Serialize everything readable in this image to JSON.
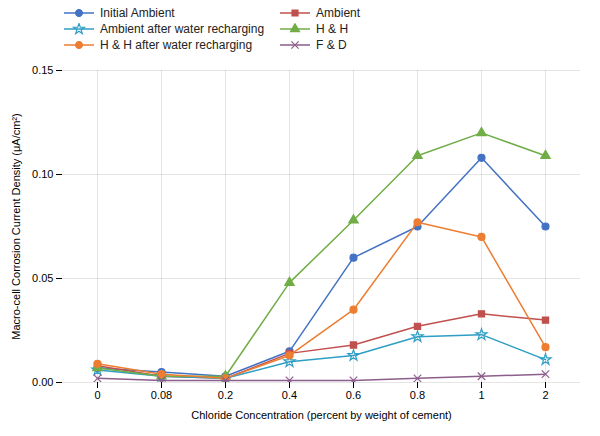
{
  "chart_data": {
    "type": "line",
    "categories": [
      "0",
      "0.08",
      "0.2",
      "0.4",
      "0.6",
      "0.8",
      "1",
      "2"
    ],
    "series": [
      {
        "name": "Initial Ambient",
        "color": "#4472C4",
        "marker": "circle",
        "values": [
          0.007,
          0.005,
          0.003,
          0.015,
          0.06,
          0.075,
          0.108,
          0.075
        ]
      },
      {
        "name": "Ambient",
        "color": "#C0504D",
        "marker": "square",
        "values": [
          0.008,
          0.003,
          0.002,
          0.014,
          0.018,
          0.027,
          0.033,
          0.03
        ]
      },
      {
        "name": "Ambient after water recharging",
        "color": "#2E9EC4",
        "marker": "star",
        "values": [
          0.006,
          0.003,
          0.002,
          0.01,
          0.013,
          0.022,
          0.023,
          0.011
        ]
      },
      {
        "name": "H & H",
        "color": "#70AD47",
        "marker": "triangle",
        "values": [
          0.007,
          0.003,
          0.003,
          0.048,
          0.078,
          0.109,
          0.12,
          0.109
        ]
      },
      {
        "name": "H & H after water recharging",
        "color": "#ED7D31",
        "marker": "circle",
        "values": [
          0.009,
          0.004,
          0.002,
          0.013,
          0.035,
          0.077,
          0.07,
          0.017
        ]
      },
      {
        "name": "F & D",
        "color": "#8B5E8B",
        "marker": "times",
        "values": [
          0.002,
          0.001,
          0.001,
          0.001,
          0.001,
          0.002,
          0.003,
          0.004
        ]
      }
    ],
    "xlabel": "Chloride Concentration (percent by weight of cement)",
    "ylabel": "Macro-cell Corrosion Current Density (μA/cm²)",
    "ylim": [
      0,
      0.15
    ],
    "yticks": [
      {
        "value": 0,
        "label": "0.00"
      },
      {
        "value": 0.05,
        "label": "0.05"
      },
      {
        "value": 0.1,
        "label": "0.10"
      },
      {
        "value": 0.15,
        "label": "0.15"
      }
    ],
    "grid": true,
    "legend": "top"
  }
}
